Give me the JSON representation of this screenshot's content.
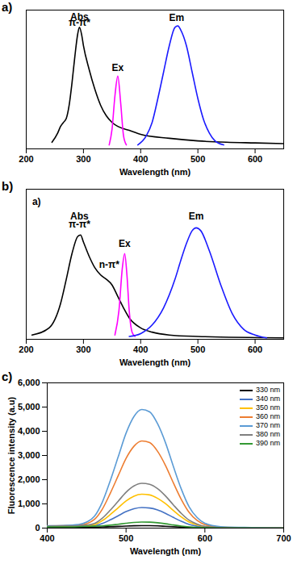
{
  "chart_data": [
    {
      "type": "line",
      "title": "a)",
      "x_label": "Wavelength (nm)",
      "xlim": [
        200,
        650
      ],
      "xticks": [
        200,
        300,
        400,
        500,
        600
      ],
      "ylim": [
        0,
        1.05
      ],
      "yticks": [],
      "tick_labels": "x",
      "series": [
        {
          "color": "#000000",
          "x": [
            245,
            255,
            260,
            265,
            270,
            275,
            280,
            285,
            290,
            293,
            297,
            300,
            310,
            320,
            330,
            340,
            350,
            360,
            380,
            400,
            450,
            500,
            550,
            600,
            650
          ],
          "values": [
            0.05,
            0.12,
            0.17,
            0.2,
            0.23,
            0.33,
            0.5,
            0.7,
            0.87,
            0.92,
            0.86,
            0.78,
            0.6,
            0.45,
            0.33,
            0.25,
            0.2,
            0.17,
            0.14,
            0.11,
            0.08,
            0.06,
            0.05,
            0.045,
            0.04
          ]
        },
        {
          "color": "#ff00ff",
          "x": [
            345,
            350,
            355,
            360,
            365,
            370,
            375
          ],
          "values": [
            0.03,
            0.15,
            0.4,
            0.55,
            0.35,
            0.1,
            0.03
          ]
        },
        {
          "color": "#1a1aff",
          "x": [
            395,
            410,
            420,
            430,
            440,
            450,
            460,
            465,
            470,
            480,
            490,
            500,
            510,
            520,
            530,
            545
          ],
          "values": [
            0.03,
            0.1,
            0.2,
            0.38,
            0.58,
            0.78,
            0.92,
            0.93,
            0.9,
            0.78,
            0.58,
            0.38,
            0.22,
            0.12,
            0.06,
            0.03
          ]
        }
      ],
      "annotations": [
        {
          "text": "Abs",
          "x": 293,
          "y": 1.0
        },
        {
          "text": "π-π*",
          "x": 293,
          "y": 0.955
        },
        {
          "text": "Ex",
          "x": 360,
          "y": 0.61
        },
        {
          "text": "Em",
          "x": 463,
          "y": 0.99
        }
      ]
    },
    {
      "type": "line",
      "title": "b)",
      "x_label": "Wavelength (nm)",
      "xlim": [
        200,
        650
      ],
      "xticks": [
        200,
        300,
        400,
        500,
        600
      ],
      "ylim": [
        0,
        1.05
      ],
      "yticks": [],
      "tick_labels": "x",
      "series": [
        {
          "color": "#000000",
          "x": [
            210,
            240,
            260,
            270,
            280,
            290,
            295,
            300,
            310,
            320,
            330,
            340,
            350,
            360,
            370,
            380,
            400,
            420,
            450,
            500,
            650
          ],
          "values": [
            0.03,
            0.08,
            0.25,
            0.42,
            0.6,
            0.72,
            0.73,
            0.68,
            0.58,
            0.5,
            0.45,
            0.42,
            0.38,
            0.3,
            0.22,
            0.15,
            0.08,
            0.05,
            0.03,
            0.02,
            0.01
          ]
        },
        {
          "color": "#ff00ff",
          "x": [
            355,
            362,
            368,
            372,
            376,
            380,
            385,
            390
          ],
          "values": [
            0.03,
            0.2,
            0.5,
            0.6,
            0.45,
            0.2,
            0.05,
            0.02
          ]
        },
        {
          "color": "#1a1aff",
          "x": [
            380,
            400,
            420,
            440,
            460,
            470,
            480,
            490,
            497,
            505,
            520,
            540,
            560,
            580,
            600,
            620
          ],
          "values": [
            0.02,
            0.04,
            0.1,
            0.22,
            0.42,
            0.55,
            0.67,
            0.76,
            0.78,
            0.76,
            0.62,
            0.38,
            0.18,
            0.07,
            0.03,
            0.01
          ]
        }
      ],
      "annotations": [
        {
          "text": "a)",
          "x": 218,
          "y": 0.96
        },
        {
          "text": "Abs",
          "x": 293,
          "y": 0.86
        },
        {
          "text": "π-π*",
          "x": 293,
          "y": 0.805
        },
        {
          "text": "n-π*",
          "x": 345,
          "y": 0.52
        },
        {
          "text": "Ex",
          "x": 372,
          "y": 0.67
        },
        {
          "text": "Em",
          "x": 497,
          "y": 0.86
        }
      ]
    },
    {
      "type": "line",
      "title": "c)",
      "x_label": "Wavelength (nm)",
      "y_label": "Fluorescence intensity (a.u)",
      "xlim": [
        400,
        700
      ],
      "xticks": [
        400,
        500,
        600,
        700
      ],
      "ylim": [
        0,
        6000
      ],
      "yticks": [
        0,
        1000,
        2000,
        3000,
        4000,
        5000,
        6000
      ],
      "legend": "top-right",
      "x": [
        400,
        420,
        440,
        450,
        460,
        470,
        480,
        490,
        500,
        510,
        520,
        530,
        540,
        550,
        560,
        570,
        580,
        590,
        600,
        620,
        650,
        700
      ],
      "series": [
        {
          "name": "330 nm",
          "color": "#000000",
          "values": [
            30,
            30,
            30,
            35,
            40,
            50,
            60,
            70,
            85,
            95,
            100,
            98,
            90,
            75,
            60,
            45,
            30,
            20,
            10,
            5,
            0,
            0
          ]
        },
        {
          "name": "340 nm",
          "color": "#4472c4",
          "values": [
            70,
            75,
            80,
            90,
            100,
            190,
            340,
            510,
            680,
            800,
            850,
            830,
            750,
            610,
            440,
            280,
            150,
            80,
            40,
            15,
            10,
            5
          ]
        },
        {
          "name": "350 nm",
          "color": "#ffc000",
          "values": [
            80,
            85,
            90,
            100,
            140,
            310,
            560,
            840,
            1120,
            1320,
            1400,
            1370,
            1230,
            1010,
            730,
            460,
            250,
            130,
            60,
            20,
            10,
            5
          ]
        },
        {
          "name": "360 nm",
          "color": "#ed7d31",
          "values": [
            90,
            100,
            120,
            180,
            360,
            790,
            1440,
            2160,
            2880,
            3380,
            3600,
            3530,
            3170,
            2590,
            1870,
            1190,
            650,
            320,
            140,
            40,
            20,
            10
          ]
        },
        {
          "name": "370 nm",
          "color": "#5b9bd5",
          "values": [
            100,
            110,
            150,
            250,
            490,
            1080,
            1960,
            2940,
            3920,
            4610,
            4900,
            4800,
            4310,
            3530,
            2550,
            1620,
            880,
            440,
            200,
            60,
            30,
            10
          ]
        },
        {
          "name": "380 nm",
          "color": "#7f7f7f",
          "values": [
            80,
            90,
            100,
            120,
            190,
            410,
            740,
            1110,
            1480,
            1740,
            1850,
            1810,
            1630,
            1330,
            960,
            610,
            330,
            170,
            70,
            20,
            10,
            5
          ]
        },
        {
          "name": "390 nm",
          "color": "#339933",
          "values": [
            50,
            50,
            60,
            70,
            80,
            90,
            120,
            160,
            200,
            235,
            250,
            245,
            220,
            180,
            130,
            85,
            50,
            30,
            20,
            10,
            5,
            0
          ]
        }
      ]
    }
  ]
}
